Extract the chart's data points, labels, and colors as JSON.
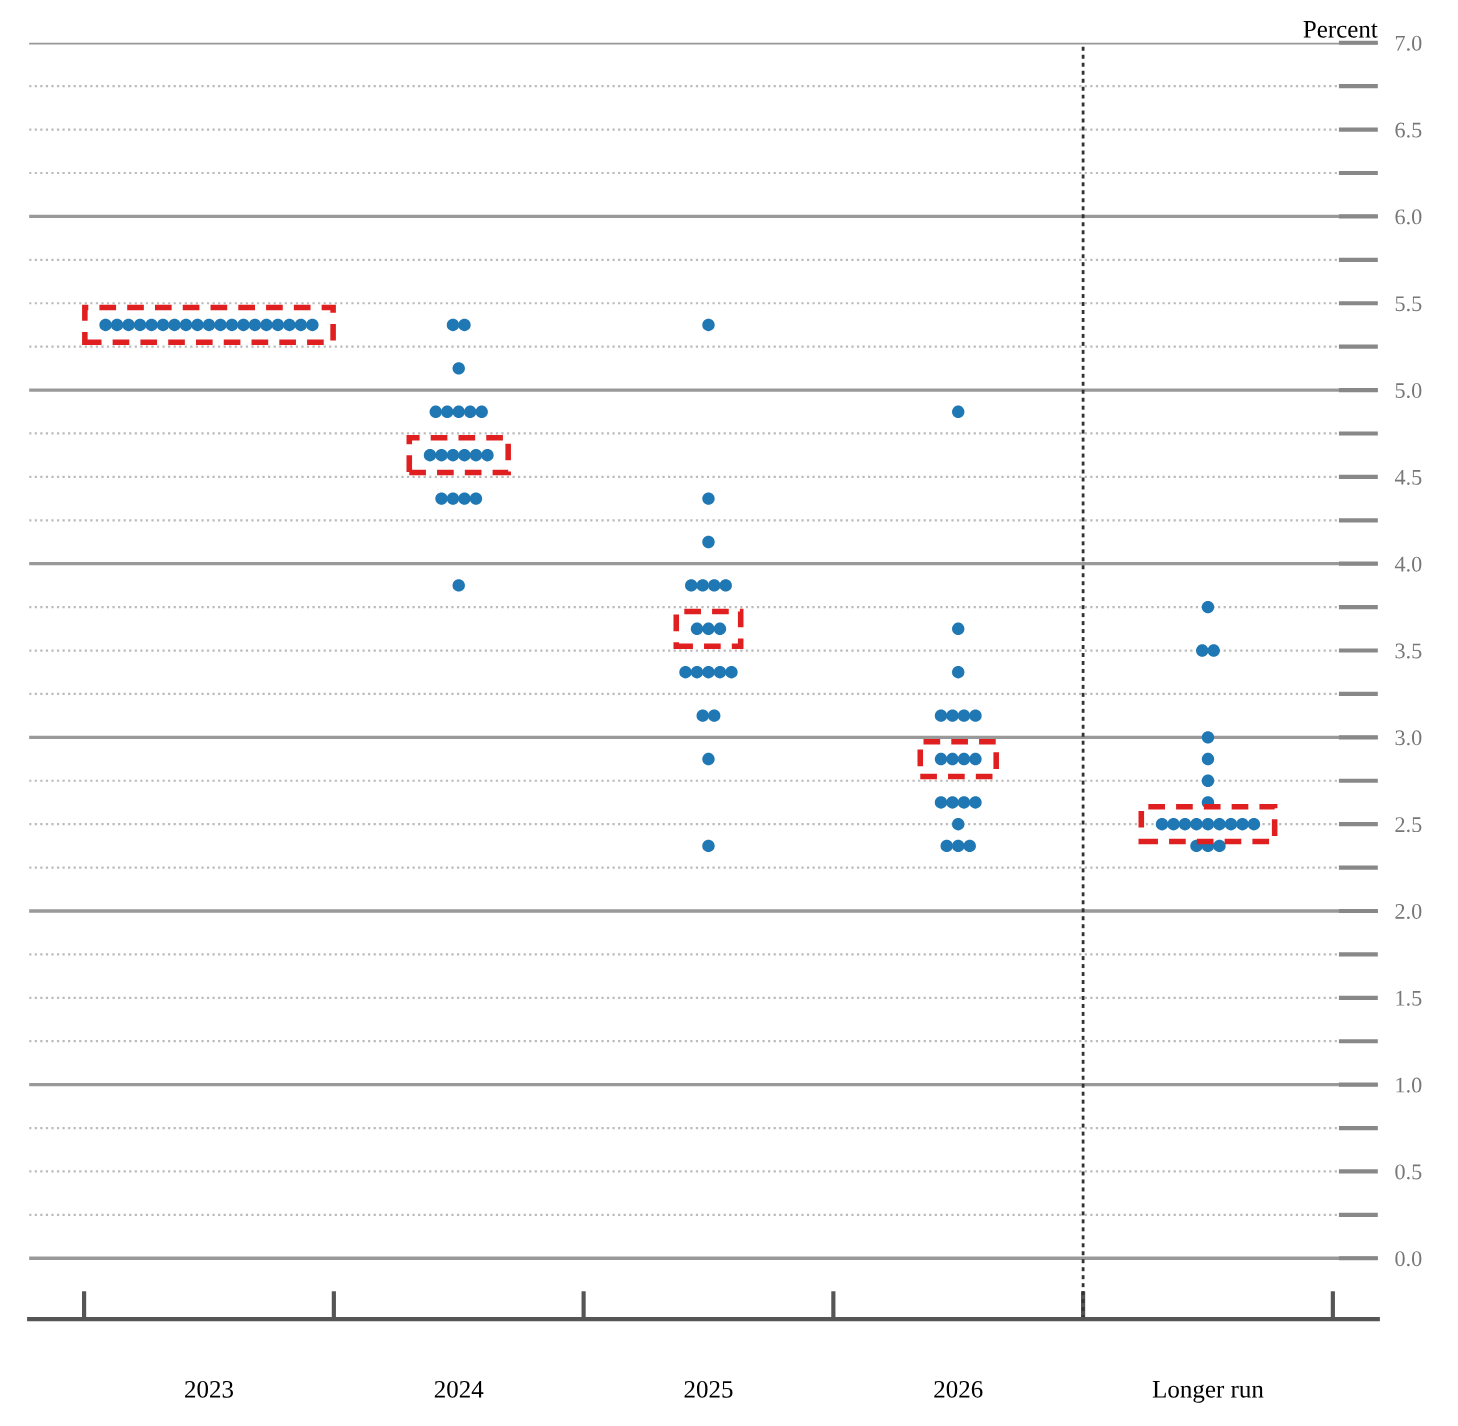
{
  "chart_data": {
    "type": "scatter",
    "categories": [
      "2023",
      "2024",
      "2025",
      "2026",
      "Longer run"
    ],
    "ylabel": "Percent",
    "series": [
      {
        "color": "#1f78b4",
        "values": [
          5.375,
          5.375,
          5.375,
          4.875,
          3.75
        ]
      },
      {
        "color": "#1f78b4",
        "values": [
          5.375,
          5.375,
          4.375,
          3.625,
          3.5
        ]
      },
      {
        "color": "#1f78b4",
        "values": [
          5.375,
          5.125,
          4.125,
          3.375,
          3.5
        ]
      },
      {
        "color": "#1f78b4",
        "values": [
          5.375,
          4.875,
          3.875,
          3.125,
          3.0
        ]
      },
      {
        "color": "#1f78b4",
        "values": [
          5.375,
          4.875,
          3.875,
          3.125,
          2.875
        ]
      },
      {
        "color": "#1f78b4",
        "values": [
          5.375,
          4.875,
          3.875,
          3.125,
          2.75
        ]
      },
      {
        "color": "#1f78b4",
        "values": [
          5.375,
          4.875,
          3.875,
          3.125,
          2.625
        ]
      },
      {
        "color": "#1f78b4",
        "values": [
          5.375,
          4.875,
          3.625,
          2.875,
          2.5
        ]
      },
      {
        "color": "#1f78b4",
        "values": [
          5.375,
          4.625,
          3.625,
          2.875,
          2.5
        ]
      },
      {
        "color": "#1f78b4",
        "values": [
          5.375,
          4.625,
          3.625,
          2.875,
          2.5
        ]
      },
      {
        "color": "#1f78b4",
        "values": [
          5.375,
          4.625,
          3.375,
          2.875,
          2.5
        ]
      },
      {
        "color": "#1f78b4",
        "values": [
          5.375,
          4.625,
          3.375,
          2.625,
          2.5
        ]
      },
      {
        "color": "#1f78b4",
        "values": [
          5.375,
          4.625,
          3.375,
          2.625,
          2.5
        ]
      },
      {
        "color": "#1f78b4",
        "values": [
          5.375,
          4.625,
          3.375,
          2.625,
          2.5
        ]
      },
      {
        "color": "#1f78b4",
        "values": [
          5.375,
          4.375,
          3.375,
          2.625,
          2.5
        ]
      },
      {
        "color": "#1f78b4",
        "values": [
          5.375,
          4.375,
          3.125,
          2.5,
          2.5
        ]
      },
      {
        "color": "#1f78b4",
        "values": [
          5.375,
          4.375,
          3.125,
          2.375,
          2.375
        ]
      },
      {
        "color": "#1f78b4",
        "values": [
          5.375,
          4.375,
          2.875,
          2.375,
          2.375
        ]
      },
      {
        "color": "#1f78b4",
        "values": [
          5.375,
          3.875,
          2.375,
          2.375,
          2.375
        ]
      }
    ],
    "marker": "circle",
    "ylim": [
      -0.35,
      7
    ],
    "yticks": [
      {
        "value": 0,
        "label": "0.0"
      },
      {
        "value": 0.25,
        "label": null
      },
      {
        "value": 0.5,
        "label": "0.5"
      },
      {
        "value": 0.75,
        "label": null
      },
      {
        "value": 1,
        "label": "1.0"
      },
      {
        "value": 1.25,
        "label": null
      },
      {
        "value": 1.5,
        "label": "1.5"
      },
      {
        "value": 1.75,
        "label": null
      },
      {
        "value": 2,
        "label": "2.0"
      },
      {
        "value": 2.25,
        "label": null
      },
      {
        "value": 2.5,
        "label": "2.5"
      },
      {
        "value": 2.75,
        "label": null
      },
      {
        "value": 3,
        "label": "3.0"
      },
      {
        "value": 3.25,
        "label": null
      },
      {
        "value": 3.5,
        "label": "3.5"
      },
      {
        "value": 3.75,
        "label": null
      },
      {
        "value": 4,
        "label": "4.0"
      },
      {
        "value": 4.25,
        "label": null
      },
      {
        "value": 4.5,
        "label": "4.5"
      },
      {
        "value": 4.75,
        "label": null
      },
      {
        "value": 5,
        "label": "5.0"
      },
      {
        "value": 5.25,
        "label": null
      },
      {
        "value": 5.5,
        "label": "5.5"
      },
      {
        "value": 5.75,
        "label": null
      },
      {
        "value": 6,
        "label": "6.0"
      },
      {
        "value": 6.25,
        "label": null
      },
      {
        "value": 6.5,
        "label": "6.5"
      },
      {
        "value": 6.75,
        "label": null
      },
      {
        "value": 7,
        "label": "7.0"
      }
    ],
    "grid": "y"
  }
}
